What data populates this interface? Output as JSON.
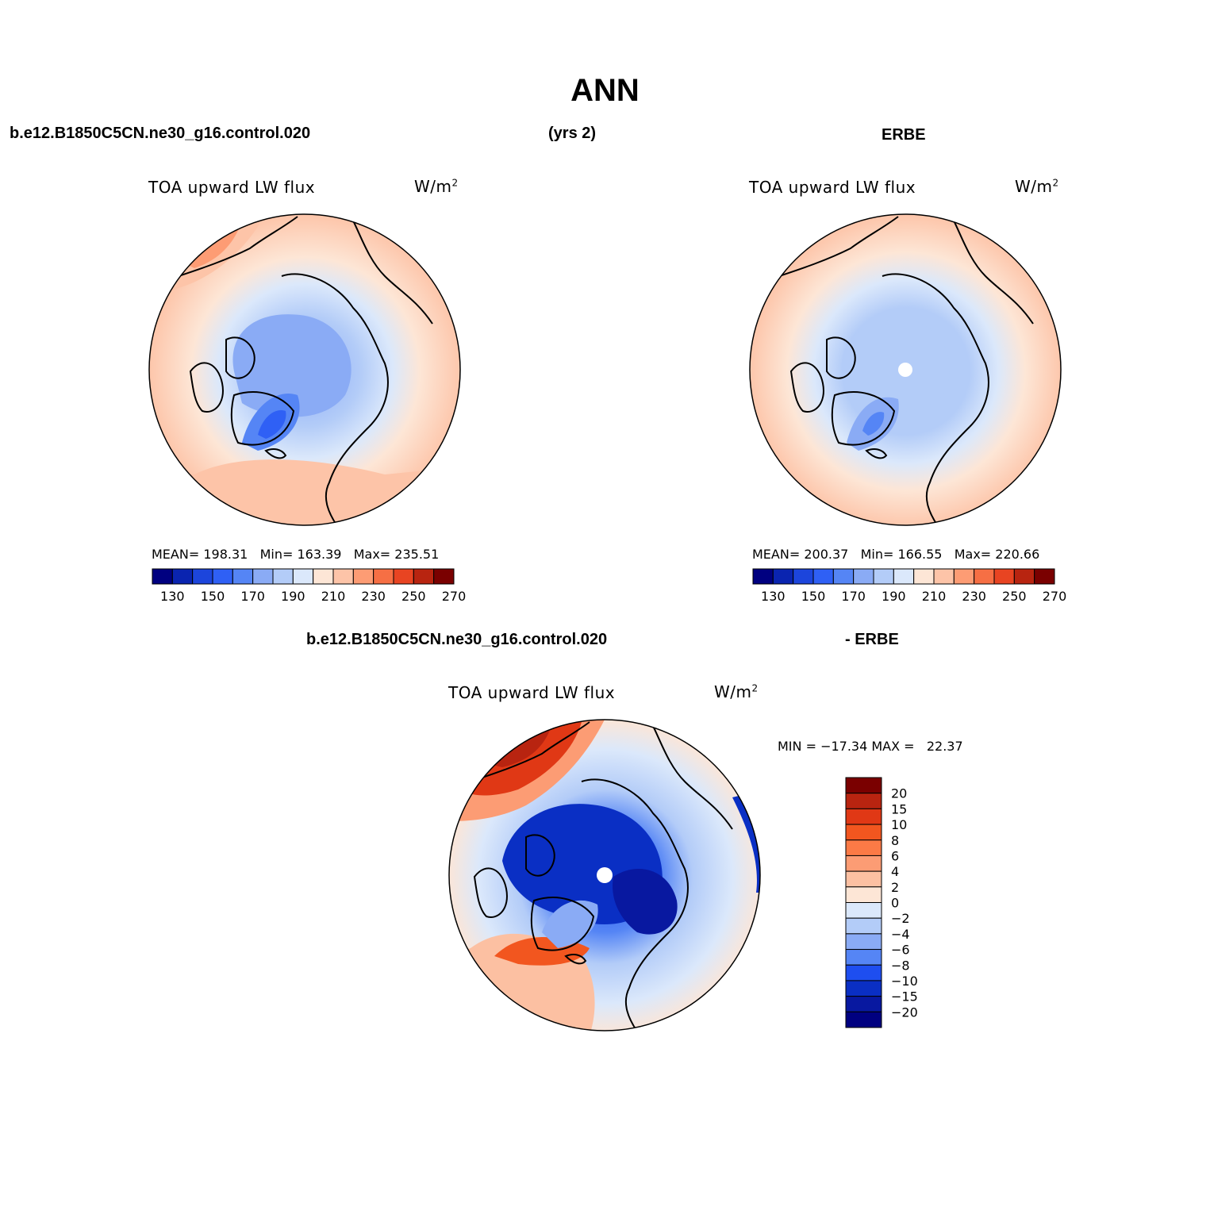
{
  "title": "ANN",
  "top_left_header": "b.e12.B1850C5CN.ne30_g16.control.020",
  "top_center_header": "(yrs 2)",
  "top_right_header": "ERBE",
  "bottom_header_left": "b.e12.B1850C5CN.ne30_g16.control.020",
  "bottom_header_right": "- ERBE",
  "panels": [
    {
      "name": "model",
      "variable": "TOA upward LW flux",
      "units": "W/m",
      "units_sup": "2",
      "mean_label": "MEAN=",
      "mean": "198.31",
      "min_label": "Min=",
      "min": "163.39",
      "max_label": "Max=",
      "max": "235.51"
    },
    {
      "name": "erbe",
      "variable": "TOA upward LW flux",
      "units": "W/m",
      "units_sup": "2",
      "mean_label": "MEAN=",
      "mean": "200.37",
      "min_label": "Min=",
      "min": "166.55",
      "max_label": "Max=",
      "max": "220.66"
    },
    {
      "name": "difference",
      "variable": "TOA upward LW flux",
      "units": "W/m",
      "units_sup": "2",
      "minmax_text": "MIN = −17.34 MAX =   22.37"
    }
  ],
  "colorbar_abs": {
    "labels": [
      "130",
      "150",
      "170",
      "190",
      "210",
      "230",
      "250",
      "270"
    ],
    "colors": [
      "#000080",
      "#0a24b0",
      "#1c45dc",
      "#2f60f5",
      "#5585f5",
      "#8aabf5",
      "#b3ccf8",
      "#dbe8fb",
      "#fde6d6",
      "#fdc4a8",
      "#fd9c74",
      "#f66f44",
      "#e84422",
      "#b82410",
      "#7a0000"
    ]
  },
  "colorbar_diff": {
    "labels": [
      "20",
      "15",
      "10",
      "8",
      "6",
      "4",
      "2",
      "0",
      "−2",
      "−4",
      "−6",
      "−8",
      "−10",
      "−15",
      "−20"
    ],
    "colors": [
      "#7a0000",
      "#b82410",
      "#e03815",
      "#f2561f",
      "#fb7a46",
      "#fc9c74",
      "#fcc0a2",
      "#fde6d6",
      "#dbe8fb",
      "#b3ccf8",
      "#8aabf5",
      "#5585f5",
      "#1e4ef0",
      "#0a2fc4",
      "#0818a0",
      "#000080"
    ]
  }
}
